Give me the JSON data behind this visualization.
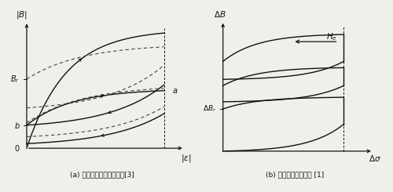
{
  "fig_width": 5.0,
  "fig_height": 2.45,
  "dpi": 100,
  "bg_color": "#f0efea",
  "left_caption": "(a) 鐵磁性材料的自發磁化[3]",
  "right_caption": "(b) 磁彈性現象的進展 [1]",
  "line_color": "#111111",
  "dashed_color": "#444444"
}
